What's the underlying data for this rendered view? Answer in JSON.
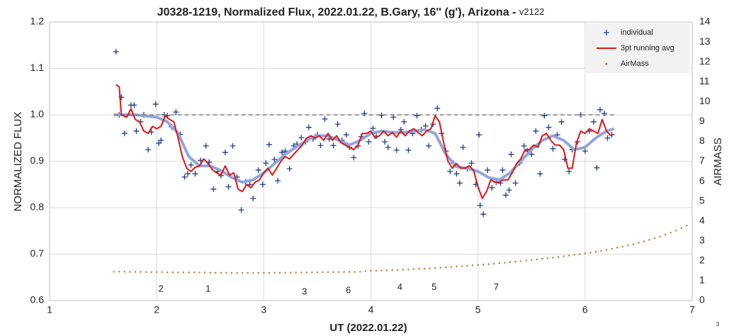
{
  "chart_data": {
    "type": "line",
    "title": "J0328-1219, Normalized Flux, 2022.01.22, B.Gary, 16'' (g'), Arizona - ",
    "title_suffix": "v2122",
    "xlabel": "UT (2022.01.22)",
    "ylabel": "NORMALIZED FLUX",
    "y2label": "AIRMASS",
    "corner_note": "3",
    "xlim": [
      1,
      7
    ],
    "xticks": [
      1,
      2,
      3,
      4,
      5,
      6,
      7
    ],
    "ylim": [
      0.6,
      1.2
    ],
    "yticks": [
      0.6,
      0.7,
      0.8,
      0.9,
      {
        "value": 1,
        "label": "1.0"
      },
      1.1,
      1.2
    ],
    "y2lim": [
      0,
      14
    ],
    "y2ticks": [
      0,
      1,
      2,
      3,
      4,
      5,
      6,
      7,
      8,
      9,
      10,
      11,
      12,
      13,
      14
    ],
    "grid": true,
    "legend": "upper right",
    "series": [
      {
        "name": "individual",
        "kind": "plus",
        "color": "#1f3d8c",
        "x": [
          1.62,
          1.67,
          1.7,
          1.65,
          1.76,
          1.79,
          1.81,
          1.85,
          1.88,
          1.92,
          1.95,
          1.99,
          2.02,
          2.04,
          2.07,
          2.1,
          2.14,
          2.18,
          2.22,
          2.26,
          2.29,
          2.32,
          2.36,
          2.41,
          2.46,
          2.49,
          2.53,
          2.57,
          2.6,
          2.64,
          2.67,
          2.71,
          2.75,
          2.79,
          2.83,
          2.87,
          2.9,
          2.95,
          2.99,
          3.02,
          3.05,
          3.1,
          3.13,
          3.17,
          3.2,
          3.24,
          3.28,
          3.31,
          3.35,
          3.39,
          3.42,
          3.46,
          3.5,
          3.53,
          3.57,
          3.61,
          3.65,
          3.69,
          3.73,
          3.77,
          3.8,
          3.84,
          3.88,
          3.91,
          3.94,
          3.98,
          4.02,
          4.05,
          4.1,
          4.13,
          4.16,
          4.21,
          4.24,
          4.28,
          4.31,
          4.35,
          4.39,
          4.43,
          4.47,
          4.51,
          4.54,
          4.58,
          4.62,
          4.66,
          4.7,
          4.74,
          4.77,
          4.8,
          4.83,
          4.86,
          4.9,
          4.94,
          4.98,
          5.01,
          5.02,
          5.05,
          5.09,
          5.13,
          5.17,
          5.21,
          5.23,
          5.26,
          5.29,
          5.31,
          5.35,
          5.39,
          5.43,
          5.46,
          5.5,
          5.54,
          5.58,
          5.62,
          5.66,
          5.7,
          5.74,
          5.78,
          5.81,
          5.85,
          5.88,
          5.93,
          5.96,
          6.0,
          6.04,
          6.08,
          6.11,
          6.14,
          6.18,
          6.21,
          6.25
        ],
        "values": [
          1.136,
          1.038,
          0.96,
          1.0,
          1.021,
          1.021,
          0.965,
          0.985,
          1.0,
          0.925,
          0.963,
          1.023,
          0.939,
          0.945,
          1.0,
          0.998,
          0.974,
          1.006,
          0.958,
          0.866,
          0.873,
          0.892,
          0.873,
          0.902,
          0.933,
          0.898,
          0.84,
          0.878,
          0.869,
          0.919,
          0.845,
          0.933,
          0.866,
          0.795,
          0.856,
          0.85,
          0.82,
          0.881,
          0.85,
          0.896,
          0.936,
          0.904,
          0.858,
          0.919,
          0.922,
          0.884,
          0.933,
          0.937,
          0.951,
          0.942,
          0.973,
          0.948,
          0.957,
          0.934,
          0.991,
          0.948,
          0.934,
          0.98,
          0.945,
          0.957,
          0.93,
          0.908,
          0.933,
          0.953,
          1.003,
          0.942,
          0.971,
          0.954,
          0.999,
          0.942,
          0.93,
          0.995,
          0.924,
          0.968,
          0.985,
          0.924,
          0.96,
          0.998,
          0.968,
          0.976,
          0.933,
          0.98,
          1.014,
          0.96,
          0.922,
          0.878,
          0.896,
          0.873,
          0.853,
          0.93,
          0.884,
          0.896,
          0.85,
          0.957,
          0.805,
          0.786,
          0.881,
          0.843,
          0.855,
          0.853,
          0.881,
          0.827,
          0.838,
          0.915,
          0.853,
          0.896,
          0.933,
          0.922,
          0.915,
          0.965,
          0.873,
          0.998,
          0.973,
          0.927,
          0.957,
          0.985,
          0.904,
          0.878,
          0.925,
          0.942,
          1.0,
          0.922,
          0.965,
          0.985,
          0.886,
          1.011,
          1.003,
          0.95,
          0.957
        ]
      },
      {
        "kind": "line",
        "color": "#8fa6dd",
        "width": 4,
        "x": [
          1.6,
          1.8,
          2.0,
          2.1,
          2.2,
          2.3,
          2.4,
          2.5,
          2.6,
          2.7,
          2.8,
          2.9,
          3.0,
          3.1,
          3.2,
          3.3,
          3.4,
          3.5,
          3.6,
          3.7,
          3.8,
          3.9,
          4.0,
          4.1,
          4.2,
          4.3,
          4.4,
          4.5,
          4.6,
          4.7,
          4.8,
          4.9,
          5.0,
          5.1,
          5.2,
          5.3,
          5.4,
          5.5,
          5.6,
          5.7,
          5.8,
          5.9,
          6.0,
          6.1,
          6.2,
          6.27
        ],
        "values": [
          1.0,
          1.0,
          0.995,
          0.985,
          0.96,
          0.91,
          0.89,
          0.89,
          0.88,
          0.865,
          0.855,
          0.86,
          0.875,
          0.895,
          0.915,
          0.93,
          0.945,
          0.955,
          0.955,
          0.945,
          0.935,
          0.945,
          0.96,
          0.965,
          0.962,
          0.962,
          0.965,
          0.968,
          0.96,
          0.915,
          0.888,
          0.885,
          0.878,
          0.865,
          0.86,
          0.875,
          0.9,
          0.925,
          0.945,
          0.955,
          0.945,
          0.925,
          0.93,
          0.95,
          0.965,
          0.97
        ]
      },
      {
        "kind": "line",
        "color": "#808080",
        "width": 1.5,
        "dash": true,
        "x": [
          1.6,
          6.27
        ],
        "values": [
          1,
          1
        ]
      },
      {
        "name": "3pt running avg",
        "kind": "line",
        "color": "#e01515",
        "width": 2,
        "x": [
          1.62,
          1.65,
          1.67,
          1.72,
          1.76,
          1.8,
          1.84,
          1.88,
          1.92,
          1.96,
          2.0,
          2.04,
          2.08,
          2.12,
          2.16,
          2.2,
          2.24,
          2.28,
          2.32,
          2.36,
          2.4,
          2.44,
          2.48,
          2.52,
          2.56,
          2.6,
          2.64,
          2.68,
          2.72,
          2.76,
          2.8,
          2.84,
          2.88,
          2.92,
          2.96,
          3.0,
          3.04,
          3.08,
          3.12,
          3.16,
          3.2,
          3.24,
          3.28,
          3.32,
          3.36,
          3.4,
          3.44,
          3.48,
          3.52,
          3.56,
          3.6,
          3.64,
          3.68,
          3.72,
          3.76,
          3.8,
          3.84,
          3.88,
          3.92,
          3.96,
          4.0,
          4.04,
          4.08,
          4.12,
          4.16,
          4.2,
          4.24,
          4.28,
          4.32,
          4.36,
          4.4,
          4.44,
          4.48,
          4.52,
          4.56,
          4.6,
          4.64,
          4.68,
          4.72,
          4.76,
          4.8,
          4.84,
          4.88,
          4.92,
          4.96,
          5.0,
          5.04,
          5.08,
          5.12,
          5.16,
          5.2,
          5.24,
          5.28,
          5.32,
          5.36,
          5.4,
          5.44,
          5.48,
          5.52,
          5.56,
          5.6,
          5.64,
          5.68,
          5.72,
          5.76,
          5.8,
          5.84,
          5.88,
          5.92,
          5.96,
          6.0,
          6.04,
          6.08,
          6.12,
          6.16,
          6.2,
          6.24
        ],
        "values": [
          1.065,
          1.06,
          1.0,
          0.995,
          1.013,
          0.99,
          0.985,
          0.965,
          0.96,
          0.975,
          0.97,
          0.975,
          0.998,
          0.99,
          0.985,
          0.95,
          0.91,
          0.885,
          0.878,
          0.887,
          0.89,
          0.905,
          0.895,
          0.882,
          0.875,
          0.87,
          0.89,
          0.87,
          0.875,
          0.84,
          0.835,
          0.85,
          0.843,
          0.855,
          0.86,
          0.875,
          0.885,
          0.87,
          0.885,
          0.9,
          0.91,
          0.905,
          0.915,
          0.925,
          0.935,
          0.95,
          0.955,
          0.95,
          0.955,
          0.945,
          0.96,
          0.945,
          0.955,
          0.94,
          0.935,
          0.93,
          0.925,
          0.935,
          0.96,
          0.96,
          0.965,
          0.95,
          0.955,
          0.965,
          0.955,
          0.962,
          0.952,
          0.965,
          0.955,
          0.965,
          0.97,
          0.962,
          0.955,
          0.965,
          0.97,
          0.998,
          0.985,
          0.94,
          0.9,
          0.885,
          0.895,
          0.885,
          0.885,
          0.89,
          0.88,
          0.845,
          0.82,
          0.835,
          0.86,
          0.855,
          0.855,
          0.86,
          0.86,
          0.875,
          0.895,
          0.905,
          0.925,
          0.925,
          0.935,
          0.93,
          0.955,
          0.96,
          0.945,
          0.935,
          0.935,
          0.925,
          0.885,
          0.885,
          0.94,
          0.965,
          0.96,
          0.97,
          0.965,
          0.96,
          0.99,
          0.965,
          0.955
        ]
      },
      {
        "name": "AirMass",
        "kind": "dots",
        "color": "#c0702c",
        "axis": "y2",
        "x": [
          1.6,
          1.65,
          1.7,
          1.75,
          1.8,
          1.85,
          1.9,
          1.95,
          2.0,
          2.05,
          2.1,
          2.15,
          2.2,
          2.25,
          2.3,
          2.35,
          2.4,
          2.45,
          2.5,
          2.55,
          2.6,
          2.65,
          2.7,
          2.75,
          2.8,
          2.85,
          2.9,
          2.95,
          3.0,
          3.05,
          3.1,
          3.15,
          3.2,
          3.25,
          3.3,
          3.35,
          3.4,
          3.45,
          3.5,
          3.55,
          3.6,
          3.65,
          3.7,
          3.75,
          3.8,
          3.85,
          3.9,
          3.95,
          4.0,
          4.05,
          4.1,
          4.15,
          4.2,
          4.25,
          4.3,
          4.35,
          4.4,
          4.45,
          4.5,
          4.55,
          4.6,
          4.65,
          4.7,
          4.75,
          4.8,
          4.85,
          4.9,
          4.95,
          5.0,
          5.05,
          5.1,
          5.15,
          5.2,
          5.25,
          5.3,
          5.35,
          5.4,
          5.45,
          5.5,
          5.55,
          5.6,
          5.65,
          5.7,
          5.75,
          5.8,
          5.85,
          5.9,
          5.95,
          6.0,
          6.05,
          6.1,
          6.15,
          6.2,
          6.25,
          6.3,
          6.35,
          6.4,
          6.45,
          6.5,
          6.55,
          6.6,
          6.65,
          6.7,
          6.75,
          6.8,
          6.85,
          6.9,
          6.95
        ],
        "values": [
          1.45,
          1.45,
          1.45,
          1.44,
          1.44,
          1.44,
          1.43,
          1.43,
          1.43,
          1.43,
          1.42,
          1.42,
          1.42,
          1.42,
          1.42,
          1.42,
          1.41,
          1.41,
          1.4,
          1.4,
          1.4,
          1.4,
          1.39,
          1.39,
          1.39,
          1.39,
          1.39,
          1.39,
          1.39,
          1.39,
          1.4,
          1.4,
          1.4,
          1.4,
          1.41,
          1.41,
          1.41,
          1.42,
          1.42,
          1.42,
          1.43,
          1.43,
          1.43,
          1.44,
          1.44,
          1.44,
          1.45,
          1.48,
          1.49,
          1.5,
          1.51,
          1.52,
          1.53,
          1.54,
          1.55,
          1.56,
          1.58,
          1.59,
          1.6,
          1.62,
          1.63,
          1.65,
          1.67,
          1.69,
          1.71,
          1.73,
          1.75,
          1.77,
          1.79,
          1.81,
          1.83,
          1.85,
          1.88,
          1.9,
          1.93,
          1.95,
          1.98,
          2.01,
          2.04,
          2.07,
          2.1,
          2.13,
          2.16,
          2.19,
          2.23,
          2.26,
          2.3,
          2.33,
          2.37,
          2.41,
          2.45,
          2.5,
          2.55,
          2.6,
          2.66,
          2.71,
          2.77,
          2.83,
          2.9,
          2.97,
          3.05,
          3.13,
          3.22,
          3.31,
          3.41,
          3.52,
          3.64,
          3.77
        ]
      }
    ],
    "annotations": [
      {
        "text": "2",
        "x": 2.04,
        "y": 0.624
      },
      {
        "text": "1",
        "x": 2.48,
        "y": 0.624
      },
      {
        "text": "3",
        "x": 3.38,
        "y": 0.618
      },
      {
        "text": "6",
        "x": 3.79,
        "y": 0.621
      },
      {
        "text": "4",
        "x": 4.27,
        "y": 0.628
      },
      {
        "text": "5",
        "x": 4.59,
        "y": 0.628
      },
      {
        "text": "7",
        "x": 5.17,
        "y": 0.628
      }
    ]
  }
}
